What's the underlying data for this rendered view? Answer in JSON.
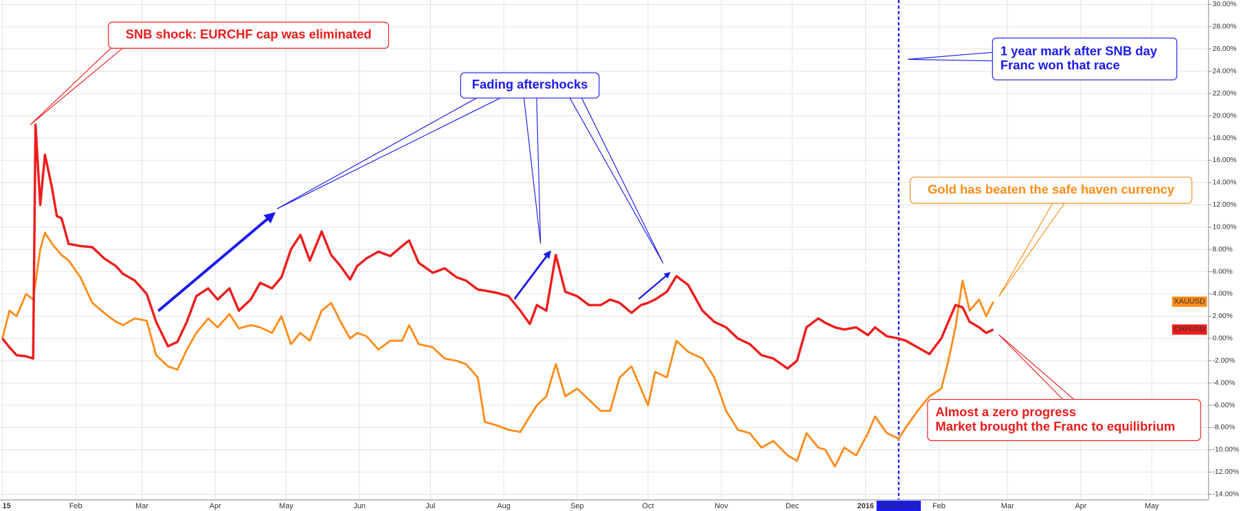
{
  "chart_data": {
    "type": "line",
    "xlim": [
      "2014-12-31",
      "2016-05-25"
    ],
    "ylim": [
      -14.5,
      30.4
    ],
    "grid": true,
    "xticks": [
      {
        "value": "2015-01-01",
        "label": "15"
      },
      {
        "value": "2015-02-01",
        "label": "Feb"
      },
      {
        "value": "2015-03-01",
        "label": "Mar"
      },
      {
        "value": "2015-04-01",
        "label": "Apr"
      },
      {
        "value": "2015-05-01",
        "label": "May"
      },
      {
        "value": "2015-06-01",
        "label": "Jun"
      },
      {
        "value": "2015-07-01",
        "label": "Jul"
      },
      {
        "value": "2015-08-01",
        "label": "Aug"
      },
      {
        "value": "2015-09-01",
        "label": "Sep"
      },
      {
        "value": "2015-10-01",
        "label": "Oct"
      },
      {
        "value": "2015-11-01",
        "label": "Nov"
      },
      {
        "value": "2015-12-01",
        "label": "Dec"
      },
      {
        "value": "2016-01-01",
        "label": "2016"
      },
      {
        "value": "2016-02-01",
        "label": "Feb"
      },
      {
        "value": "2016-03-01",
        "label": "Mar"
      },
      {
        "value": "2016-04-01",
        "label": "Apr"
      },
      {
        "value": "2016-05-01",
        "label": "May"
      }
    ],
    "yticks": [
      {
        "value": 30,
        "label": "30.00%"
      },
      {
        "value": 28,
        "label": "28.00%"
      },
      {
        "value": 26,
        "label": "26.00%"
      },
      {
        "value": 24,
        "label": "24.00%"
      },
      {
        "value": 22,
        "label": "22.00%"
      },
      {
        "value": 20,
        "label": "20.00%"
      },
      {
        "value": 18,
        "label": "18.00%"
      },
      {
        "value": 16,
        "label": "16.00%"
      },
      {
        "value": 14,
        "label": "14.00%"
      },
      {
        "value": 12,
        "label": "12.00%"
      },
      {
        "value": 10,
        "label": "10.00%"
      },
      {
        "value": 8,
        "label": "8.00%"
      },
      {
        "value": 6,
        "label": "6.00%"
      },
      {
        "value": 4,
        "label": "4.00%"
      },
      {
        "value": 2,
        "label": "2.00%"
      },
      {
        "value": 0,
        "label": "0.00%"
      },
      {
        "value": -2,
        "label": "-2.00%"
      },
      {
        "value": -4,
        "label": "-4.00%"
      },
      {
        "value": -6,
        "label": "-6.00%"
      },
      {
        "value": -8,
        "label": "-8.00%"
      },
      {
        "value": -10,
        "label": "-10.00%"
      },
      {
        "value": -12,
        "label": "-12.00%"
      },
      {
        "value": -14,
        "label": "-14.00%"
      }
    ],
    "crosshair_date": "2016-01-15",
    "x": [
      "2015-01-01",
      "2015-01-04",
      "2015-01-07",
      "2015-01-11",
      "2015-01-14",
      "2015-01-15",
      "2015-01-17",
      "2015-01-19",
      "2015-01-22",
      "2015-01-24",
      "2015-01-26",
      "2015-01-29",
      "2015-02-03",
      "2015-02-08",
      "2015-02-13",
      "2015-02-18",
      "2015-02-21",
      "2015-02-26",
      "2015-03-03",
      "2015-03-07",
      "2015-03-12",
      "2015-03-16",
      "2015-03-20",
      "2015-03-24",
      "2015-03-29",
      "2015-04-02",
      "2015-04-07",
      "2015-04-11",
      "2015-04-16",
      "2015-04-20",
      "2015-04-25",
      "2015-04-29",
      "2015-05-03",
      "2015-05-07",
      "2015-05-11",
      "2015-05-16",
      "2015-05-20",
      "2015-05-24",
      "2015-05-28",
      "2015-05-31",
      "2015-06-04",
      "2015-06-09",
      "2015-06-14",
      "2015-06-19",
      "2015-06-22",
      "2015-06-26",
      "2015-07-02",
      "2015-07-07",
      "2015-07-12",
      "2015-07-16",
      "2015-07-21",
      "2015-07-24",
      "2015-07-29",
      "2015-08-03",
      "2015-08-08",
      "2015-08-12",
      "2015-08-15",
      "2015-08-19",
      "2015-08-23",
      "2015-08-27",
      "2015-09-01",
      "2015-09-06",
      "2015-09-11",
      "2015-09-15",
      "2015-09-19",
      "2015-09-24",
      "2015-09-28",
      "2015-10-01",
      "2015-10-04",
      "2015-10-09",
      "2015-10-13",
      "2015-10-18",
      "2015-10-24",
      "2015-10-29",
      "2015-11-03",
      "2015-11-08",
      "2015-11-13",
      "2015-11-18",
      "2015-11-23",
      "2015-11-29",
      "2015-12-03",
      "2015-12-07",
      "2015-12-12",
      "2015-12-15",
      "2015-12-19",
      "2015-12-23",
      "2015-12-28",
      "2016-01-02",
      "2016-01-05",
      "2016-01-10",
      "2016-01-15",
      "2016-01-18",
      "2016-01-23",
      "2016-01-28",
      "2016-02-02",
      "2016-02-05",
      "2016-02-08",
      "2016-02-11",
      "2016-02-14",
      "2016-02-18",
      "2016-02-21",
      "2016-02-24"
    ],
    "series": [
      {
        "name": "XAUUSD",
        "color": "#ff8c1a",
        "values": [
          0,
          2.5,
          2,
          4,
          3.5,
          5,
          8,
          9.5,
          8.5,
          8,
          7.5,
          7,
          5.5,
          3.2,
          2.3,
          1.5,
          1.2,
          1.8,
          1.6,
          -1.5,
          -2.5,
          -2.8,
          -1,
          0.5,
          1.8,
          1,
          2.2,
          0.9,
          1.2,
          1,
          0.5,
          2,
          -0.5,
          0.5,
          -0.2,
          2.5,
          3.2,
          1.5,
          0,
          0.5,
          0.2,
          -1,
          -0.2,
          -0.2,
          1.2,
          -0.5,
          -0.8,
          -1.8,
          -2,
          -2.3,
          -3.5,
          -7.5,
          -7.8,
          -8.2,
          -8.4,
          -7,
          -6,
          -5.2,
          -2.3,
          -5.2,
          -4.5,
          -5.5,
          -6.5,
          -6.5,
          -3.5,
          -2.5,
          -4.5,
          -6,
          -3,
          -3.5,
          -0.2,
          -1.2,
          -1.8,
          -3.5,
          -6.5,
          -8.2,
          -8.5,
          -9.8,
          -9.2,
          -10.5,
          -11,
          -8.5,
          -9.8,
          -10,
          -11.5,
          -9.8,
          -10.5,
          -8.5,
          -7,
          -8.5,
          -9,
          -8,
          -6.5,
          -5.2,
          -4.5,
          -2,
          1,
          5.2,
          2.5,
          3.5,
          2,
          3.3
        ]
      },
      {
        "name": "CHFUSD",
        "color": "#ee1c1c",
        "values": [
          0,
          -0.8,
          -1.5,
          -1.6,
          -1.8,
          19.2,
          12,
          16.5,
          13.5,
          11,
          10.8,
          8.5,
          8.3,
          8.2,
          7.2,
          6.5,
          5.8,
          5.2,
          4,
          1.5,
          -0.7,
          -0.3,
          1.5,
          3.8,
          4.5,
          3.5,
          4.5,
          2.5,
          3.5,
          5,
          4.5,
          5.5,
          8,
          9.3,
          7,
          9.6,
          7.5,
          6.5,
          5.3,
          6.5,
          7.2,
          7.8,
          7.4,
          8.3,
          8.8,
          6.8,
          5.9,
          6.3,
          5.5,
          5.2,
          4.4,
          4.3,
          4.1,
          3.8,
          2.5,
          1.3,
          3,
          2.5,
          7.5,
          4.2,
          3.8,
          3,
          3,
          3.5,
          3.2,
          2.3,
          3,
          3.2,
          3.5,
          4.2,
          5.6,
          4.8,
          2.5,
          1.5,
          1,
          0,
          -0.5,
          -1.5,
          -1.8,
          -2.7,
          -2,
          1,
          1.8,
          1.4,
          1,
          0.8,
          1,
          0.3,
          1,
          0.2,
          0,
          -0.2,
          -0.8,
          -1.4,
          0,
          1.5,
          3,
          2.8,
          1.5,
          1,
          0.5,
          0.8
        ]
      }
    ],
    "annotations": [
      {
        "lines": [
          "SNB shock: EURCHF cap was eliminated"
        ],
        "color": "#ee1c1c"
      },
      {
        "lines": [
          "Fading aftershocks"
        ],
        "color": "#1a1aee"
      },
      {
        "lines": [
          "1 year mark after SNB day",
          "Franc won that race"
        ],
        "color": "#1a1aee"
      },
      {
        "lines": [
          "Gold has beaten the safe haven currency"
        ],
        "color": "#ff8c1a"
      },
      {
        "lines": [
          "Almost a zero progress",
          "Market brought the Franc to equilibrium"
        ],
        "color": "#ee1c1c"
      }
    ]
  }
}
